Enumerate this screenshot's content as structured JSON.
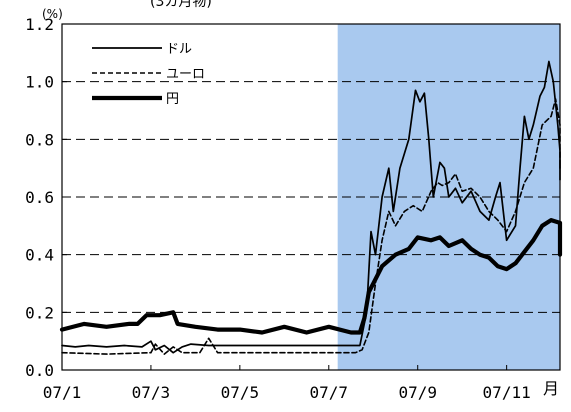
{
  "chart_data": {
    "type": "line",
    "title": "(3カ月物)",
    "unit": "(%)",
    "x_axis_label": "月",
    "x_ticks": [
      "07/1",
      "07/3",
      "07/5",
      "07/7",
      "07/9",
      "07/11"
    ],
    "y_ticks": [
      "0.0",
      "0.2",
      "0.4",
      "0.6",
      "0.8",
      "1.0",
      "1.2"
    ],
    "ylim": [
      0,
      1.2
    ],
    "xlim": [
      1,
      12.2
    ],
    "grid": "horizontal dashed",
    "legend_position": "top-left",
    "shaded_region": {
      "from": 7.2,
      "to": 12.2,
      "color": "#a9c9ef"
    },
    "series": [
      {
        "name": "ドル",
        "style": "thin-solid",
        "points": [
          [
            1.0,
            0.085
          ],
          [
            1.3,
            0.08
          ],
          [
            1.6,
            0.085
          ],
          [
            2.0,
            0.08
          ],
          [
            2.4,
            0.085
          ],
          [
            2.8,
            0.08
          ],
          [
            3.0,
            0.1
          ],
          [
            3.1,
            0.07
          ],
          [
            3.3,
            0.085
          ],
          [
            3.5,
            0.06
          ],
          [
            3.7,
            0.08
          ],
          [
            3.9,
            0.09
          ],
          [
            4.3,
            0.085
          ],
          [
            5.0,
            0.085
          ],
          [
            6.0,
            0.085
          ],
          [
            7.0,
            0.085
          ],
          [
            7.7,
            0.085
          ],
          [
            7.85,
            0.2
          ],
          [
            7.95,
            0.48
          ],
          [
            8.05,
            0.4
          ],
          [
            8.2,
            0.6
          ],
          [
            8.35,
            0.7
          ],
          [
            8.45,
            0.55
          ],
          [
            8.6,
            0.7
          ],
          [
            8.8,
            0.8
          ],
          [
            8.95,
            0.97
          ],
          [
            9.05,
            0.93
          ],
          [
            9.15,
            0.96
          ],
          [
            9.25,
            0.8
          ],
          [
            9.35,
            0.6
          ],
          [
            9.5,
            0.72
          ],
          [
            9.6,
            0.7
          ],
          [
            9.7,
            0.6
          ],
          [
            9.85,
            0.63
          ],
          [
            10.0,
            0.58
          ],
          [
            10.2,
            0.62
          ],
          [
            10.4,
            0.55
          ],
          [
            10.6,
            0.52
          ],
          [
            10.75,
            0.6
          ],
          [
            10.85,
            0.65
          ],
          [
            11.0,
            0.45
          ],
          [
            11.2,
            0.5
          ],
          [
            11.3,
            0.7
          ],
          [
            11.4,
            0.88
          ],
          [
            11.5,
            0.8
          ],
          [
            11.6,
            0.85
          ],
          [
            11.75,
            0.95
          ],
          [
            11.85,
            0.98
          ],
          [
            11.95,
            1.07
          ],
          [
            12.05,
            1.0
          ],
          [
            12.15,
            0.85
          ],
          [
            12.25,
            0.76
          ],
          [
            12.35,
            0.72
          ],
          [
            12.45,
            0.74
          ],
          [
            12.5,
            0.66
          ]
        ]
      },
      {
        "name": "ユーロ",
        "style": "dashed",
        "points": [
          [
            1.0,
            0.06
          ],
          [
            2.0,
            0.055
          ],
          [
            3.0,
            0.06
          ],
          [
            3.1,
            0.09
          ],
          [
            3.3,
            0.055
          ],
          [
            3.5,
            0.08
          ],
          [
            3.7,
            0.06
          ],
          [
            4.1,
            0.06
          ],
          [
            4.3,
            0.11
          ],
          [
            4.5,
            0.06
          ],
          [
            5.0,
            0.06
          ],
          [
            6.0,
            0.06
          ],
          [
            7.0,
            0.06
          ],
          [
            7.6,
            0.06
          ],
          [
            7.75,
            0.07
          ],
          [
            7.9,
            0.13
          ],
          [
            8.05,
            0.3
          ],
          [
            8.2,
            0.45
          ],
          [
            8.35,
            0.55
          ],
          [
            8.5,
            0.5
          ],
          [
            8.7,
            0.55
          ],
          [
            8.9,
            0.57
          ],
          [
            9.1,
            0.55
          ],
          [
            9.3,
            0.62
          ],
          [
            9.45,
            0.65
          ],
          [
            9.55,
            0.64
          ],
          [
            9.7,
            0.65
          ],
          [
            9.85,
            0.68
          ],
          [
            10.0,
            0.62
          ],
          [
            10.2,
            0.63
          ],
          [
            10.4,
            0.6
          ],
          [
            10.6,
            0.55
          ],
          [
            10.8,
            0.52
          ],
          [
            11.0,
            0.48
          ],
          [
            11.2,
            0.55
          ],
          [
            11.4,
            0.65
          ],
          [
            11.6,
            0.7
          ],
          [
            11.8,
            0.85
          ],
          [
            12.0,
            0.88
          ],
          [
            12.1,
            0.94
          ],
          [
            12.2,
            0.85
          ],
          [
            12.3,
            0.72
          ],
          [
            12.4,
            0.7
          ],
          [
            12.5,
            0.72
          ]
        ]
      },
      {
        "name": "円",
        "style": "thick-solid",
        "points": [
          [
            1.0,
            0.14
          ],
          [
            1.5,
            0.16
          ],
          [
            2.0,
            0.15
          ],
          [
            2.5,
            0.16
          ],
          [
            2.7,
            0.16
          ],
          [
            2.9,
            0.19
          ],
          [
            3.2,
            0.19
          ],
          [
            3.5,
            0.2
          ],
          [
            3.6,
            0.16
          ],
          [
            4.0,
            0.15
          ],
          [
            4.5,
            0.14
          ],
          [
            5.0,
            0.14
          ],
          [
            5.5,
            0.13
          ],
          [
            6.0,
            0.15
          ],
          [
            6.5,
            0.13
          ],
          [
            7.0,
            0.15
          ],
          [
            7.5,
            0.13
          ],
          [
            7.7,
            0.13
          ],
          [
            7.8,
            0.18
          ],
          [
            7.9,
            0.27
          ],
          [
            8.0,
            0.3
          ],
          [
            8.2,
            0.36
          ],
          [
            8.5,
            0.4
          ],
          [
            8.8,
            0.42
          ],
          [
            9.0,
            0.46
          ],
          [
            9.3,
            0.45
          ],
          [
            9.5,
            0.46
          ],
          [
            9.7,
            0.43
          ],
          [
            10.0,
            0.45
          ],
          [
            10.2,
            0.42
          ],
          [
            10.4,
            0.4
          ],
          [
            10.6,
            0.39
          ],
          [
            10.8,
            0.36
          ],
          [
            11.0,
            0.35
          ],
          [
            11.2,
            0.37
          ],
          [
            11.4,
            0.41
          ],
          [
            11.6,
            0.45
          ],
          [
            11.8,
            0.5
          ],
          [
            12.0,
            0.52
          ],
          [
            12.2,
            0.51
          ],
          [
            12.3,
            0.47
          ],
          [
            12.4,
            0.44
          ],
          [
            12.5,
            0.4
          ]
        ]
      }
    ]
  }
}
